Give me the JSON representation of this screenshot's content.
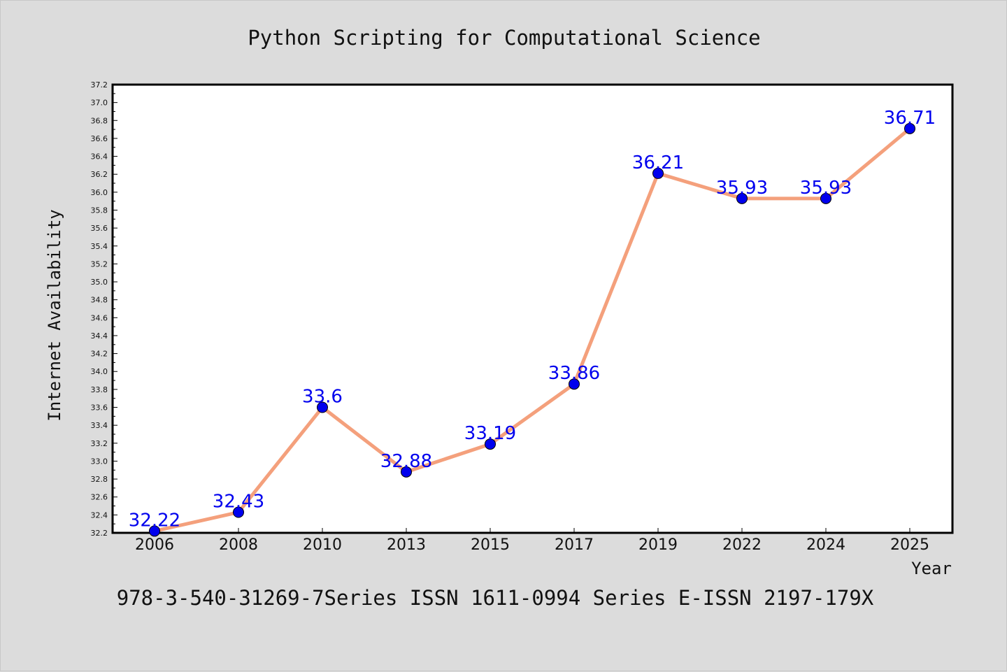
{
  "chart_data": {
    "type": "line",
    "title": "Python Scripting for Computational Science",
    "xlabel": "Year",
    "ylabel": "Internet Availability",
    "categories": [
      "2006",
      "2008",
      "2010",
      "2013",
      "2015",
      "2017",
      "2019",
      "2022",
      "2024",
      "2025"
    ],
    "values": [
      32.22,
      32.43,
      33.6,
      32.88,
      33.19,
      33.86,
      36.21,
      35.93,
      35.93,
      36.71
    ],
    "data_labels": [
      "32.22",
      "32.43",
      "33.6",
      "32.88",
      "33.19",
      "33.86",
      "36.21",
      "35.93",
      "35.93",
      "36.71"
    ],
    "ylim": [
      32.2,
      37.2
    ],
    "yticks": [
      "32.2",
      "32.4",
      "32.6",
      "32.8",
      "33.0",
      "33.2",
      "33.4",
      "33.6",
      "33.8",
      "34.0",
      "34.2",
      "34.4",
      "34.6",
      "34.8",
      "35.0",
      "35.2",
      "35.4",
      "35.6",
      "35.8",
      "36.0",
      "36.2",
      "36.4",
      "36.6",
      "36.8",
      "37.0",
      "37.2"
    ],
    "grid": false,
    "line_color": "#f4a07c",
    "marker_color": "#0000ee",
    "label_color": "#0000ee"
  },
  "footer_text": "978-3-540-31269-7Series ISSN 1611-0994 Series E-ISSN 2197-179X"
}
